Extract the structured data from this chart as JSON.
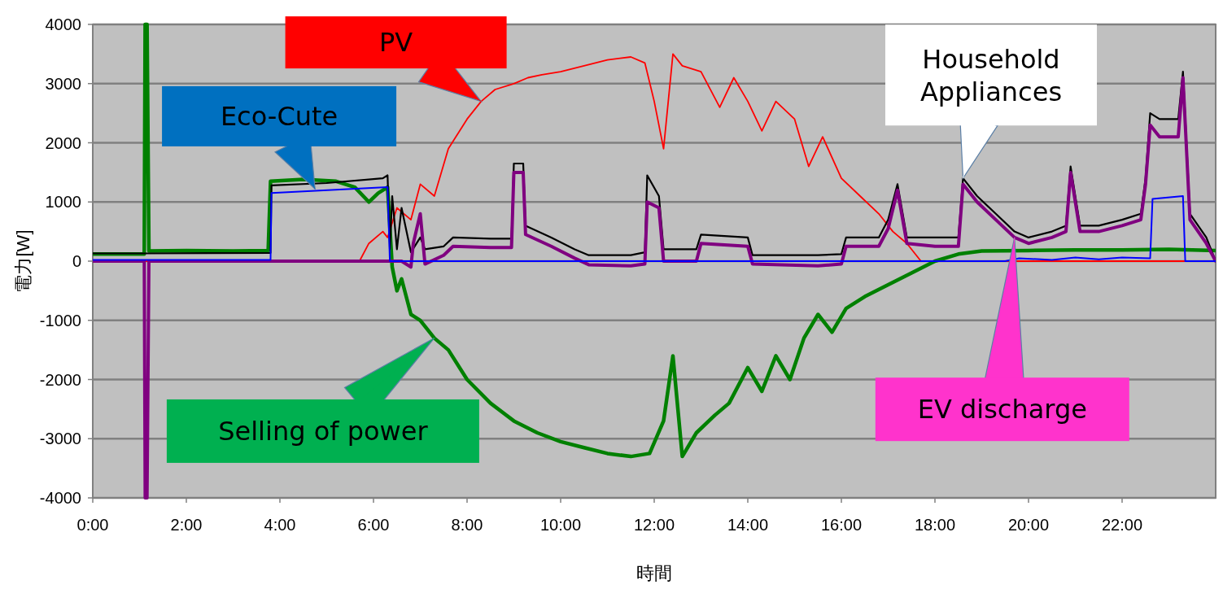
{
  "chart_data": {
    "type": "line",
    "xlabel": "時間",
    "ylabel": "電力[W]",
    "xlim": [
      0,
      24
    ],
    "ylim": [
      -4000,
      4000
    ],
    "xticks": [
      {
        "value": 0,
        "label": "0:00"
      },
      {
        "value": 2,
        "label": "2:00"
      },
      {
        "value": 4,
        "label": "4:00"
      },
      {
        "value": 6,
        "label": "6:00"
      },
      {
        "value": 8,
        "label": "8:00"
      },
      {
        "value": 10,
        "label": "10:00"
      },
      {
        "value": 12,
        "label": "12:00"
      },
      {
        "value": 14,
        "label": "14:00"
      },
      {
        "value": 16,
        "label": "16:00"
      },
      {
        "value": 18,
        "label": "18:00"
      },
      {
        "value": 20,
        "label": "20:00"
      },
      {
        "value": 22,
        "label": "22:00"
      }
    ],
    "yticks": [
      -4000,
      -3000,
      -2000,
      -1000,
      0,
      1000,
      2000,
      3000,
      4000
    ],
    "grid": "y",
    "marker": "none",
    "line_style": "solid",
    "series": [
      {
        "color": "#008000",
        "x": [
          0,
          1.1,
          1.12,
          1.16,
          1.2,
          2,
          3,
          3.75,
          3.8,
          4.5,
          5.2,
          5.6,
          5.9,
          6.1,
          6.3,
          6.4,
          6.5,
          6.6,
          6.8,
          7.0,
          7.3,
          7.6,
          8.0,
          8.5,
          9.0,
          9.5,
          10,
          10.5,
          11,
          11.5,
          11.9,
          12.2,
          12.4,
          12.6,
          12.9,
          13.3,
          13.6,
          14,
          14.3,
          14.6,
          14.9,
          15.2,
          15.5,
          15.8,
          16.1,
          16.5,
          17,
          17.5,
          18,
          18.5,
          19,
          20,
          21,
          22,
          23,
          24
        ],
        "values": [
          120,
          120,
          4000,
          4000,
          170,
          180,
          170,
          180,
          1350,
          1380,
          1350,
          1250,
          1000,
          1150,
          1250,
          -100,
          -500,
          -300,
          -900,
          -1000,
          -1300,
          -1500,
          -2000,
          -2400,
          -2700,
          -2900,
          -3050,
          -3150,
          -3250,
          -3300,
          -3250,
          -2700,
          -1600,
          -3300,
          -2900,
          -2600,
          -2400,
          -1800,
          -2200,
          -1600,
          -2000,
          -1300,
          -900,
          -1200,
          -800,
          -600,
          -400,
          -200,
          0,
          120,
          170,
          180,
          190,
          190,
          200,
          180
        ]
      },
      {
        "color": "#ff0000",
        "x": [
          0,
          5.7,
          5.9,
          6.2,
          6.3,
          6.5,
          6.8,
          7.0,
          7.3,
          7.6,
          8.0,
          8.3,
          8.6,
          9.0,
          9.3,
          9.6,
          10.0,
          10.5,
          11.0,
          11.5,
          11.8,
          12.0,
          12.2,
          12.4,
          12.6,
          13.0,
          13.4,
          13.7,
          14.0,
          14.3,
          14.6,
          15.0,
          15.3,
          15.6,
          16.0,
          16.4,
          16.8,
          17.1,
          17.4,
          17.7,
          24
        ],
        "values": [
          0,
          0,
          300,
          500,
          400,
          900,
          700,
          1300,
          1100,
          1900,
          2400,
          2700,
          2900,
          3000,
          3100,
          3150,
          3200,
          3300,
          3400,
          3450,
          3350,
          2700,
          1900,
          3500,
          3300,
          3200,
          2600,
          3100,
          2700,
          2200,
          2700,
          2400,
          1600,
          2100,
          1400,
          1100,
          800,
          500,
          300,
          0,
          0
        ]
      },
      {
        "color": "#000000",
        "x": [
          0,
          1,
          3.8,
          3.82,
          5,
          6.2,
          6.3,
          6.35,
          6.4,
          6.5,
          6.6,
          6.8,
          7.0,
          7.1,
          7.5,
          7.7,
          8.5,
          8.95,
          9.0,
          9.2,
          9.25,
          9.8,
          10.3,
          10.6,
          11.5,
          11.8,
          11.85,
          12.1,
          12.2,
          12.9,
          13.0,
          14.0,
          14.1,
          15.5,
          16.0,
          16.1,
          16.8,
          17.0,
          17.2,
          17.4,
          18.0,
          18.5,
          18.6,
          18.9,
          19.3,
          19.7,
          20.0,
          20.5,
          20.8,
          20.9,
          21.1,
          21.5,
          22.0,
          22.4,
          22.5,
          22.6,
          22.8,
          23.2,
          23.3,
          23.45,
          23.8,
          24
        ],
        "values": [
          130,
          130,
          140,
          1280,
          1320,
          1400,
          1450,
          200,
          1100,
          200,
          900,
          150,
          400,
          200,
          250,
          400,
          380,
          380,
          1650,
          1650,
          600,
          400,
          200,
          100,
          100,
          150,
          1450,
          1100,
          200,
          200,
          450,
          400,
          100,
          100,
          120,
          400,
          400,
          700,
          1300,
          400,
          400,
          400,
          1400,
          1100,
          800,
          500,
          400,
          500,
          600,
          1600,
          600,
          600,
          700,
          800,
          1400,
          2500,
          2400,
          2400,
          3200,
          800,
          400,
          0
        ]
      },
      {
        "color": "#800080",
        "x": [
          0,
          1.1,
          1.12,
          1.16,
          1.2,
          6.6,
          6.8,
          6.85,
          7.0,
          7.1,
          7.5,
          7.7,
          8.5,
          8.95,
          9.0,
          9.2,
          9.25,
          9.8,
          10.3,
          10.6,
          11.5,
          11.8,
          11.85,
          12.1,
          12.2,
          12.9,
          13.0,
          14.0,
          14.1,
          15.5,
          16.0,
          16.1,
          16.8,
          17.0,
          17.2,
          17.4,
          18.0,
          18.5,
          18.6,
          18.9,
          19.3,
          19.7,
          20.0,
          20.5,
          20.8,
          20.9,
          21.1,
          21.5,
          22.0,
          22.4,
          22.5,
          22.6,
          22.8,
          23.2,
          23.3,
          23.45,
          23.8,
          24
        ],
        "values": [
          0,
          0,
          -4000,
          -4000,
          0,
          0,
          -100,
          300,
          800,
          -50,
          100,
          250,
          230,
          230,
          1500,
          1500,
          450,
          250,
          50,
          -60,
          -80,
          -50,
          1000,
          900,
          0,
          0,
          300,
          250,
          -50,
          -80,
          -50,
          250,
          250,
          550,
          1200,
          300,
          250,
          250,
          1300,
          1000,
          700,
          400,
          300,
          400,
          500,
          1500,
          500,
          500,
          600,
          700,
          1300,
          2300,
          2100,
          2100,
          3100,
          700,
          300,
          0
        ]
      },
      {
        "color": "#0000ff",
        "x": [
          0,
          3.8,
          3.82,
          6.3,
          6.35,
          19.5,
          19.8,
          20.5,
          21,
          21.5,
          22,
          22.6,
          22.65,
          23.3,
          23.35,
          24
        ],
        "values": [
          20,
          20,
          1150,
          1250,
          0,
          0,
          50,
          20,
          60,
          30,
          60,
          50,
          1050,
          1100,
          0,
          0
        ]
      }
    ],
    "annotations": [
      {
        "text": "PV",
        "x": 8.3,
        "y": 2700
      },
      {
        "text": "Eco-Cute",
        "x": 4.75,
        "y": 1220
      },
      {
        "text": "Household Appliances",
        "x": 18.6,
        "y": 1400
      },
      {
        "text": "Selling of power",
        "x": 7.3,
        "y": -1300
      },
      {
        "text": "EV discharge",
        "x": 19.7,
        "y": 400
      }
    ]
  }
}
